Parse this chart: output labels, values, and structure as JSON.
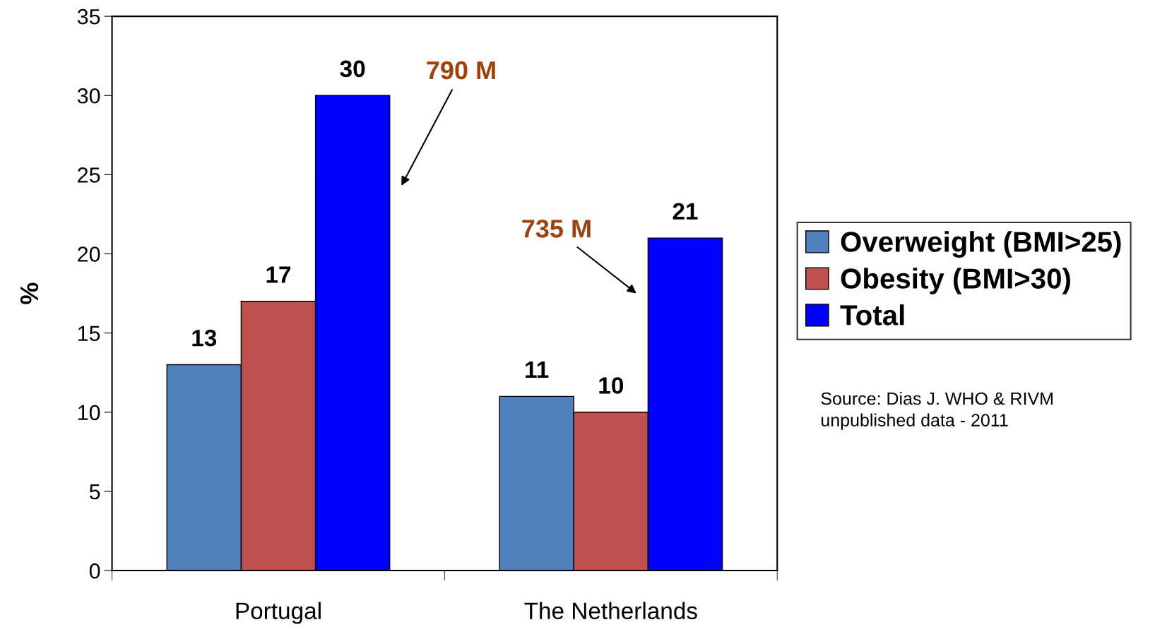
{
  "chart_data": {
    "type": "bar",
    "categories": [
      "Portugal",
      "The Netherlands"
    ],
    "ylabel": "%",
    "series": [
      {
        "name": "Overweight (BMI>25)",
        "color": "#4f81bd",
        "values": [
          13,
          11
        ]
      },
      {
        "name": "Obesity (BMI>30)",
        "color": "#c0504d",
        "values": [
          17,
          10
        ]
      },
      {
        "name": "Total",
        "color": "#0000ff",
        "values": [
          30,
          21
        ]
      }
    ],
    "ylim": [
      0,
      35
    ],
    "yticks": [
      0,
      5,
      10,
      15,
      20,
      25,
      30,
      35
    ],
    "data_labels": true,
    "grid": false,
    "legend": "right",
    "annotations": [
      "790 M",
      "735 M",
      "Source: Dias J. WHO & RIVM\nunpublished data - 2011"
    ]
  }
}
